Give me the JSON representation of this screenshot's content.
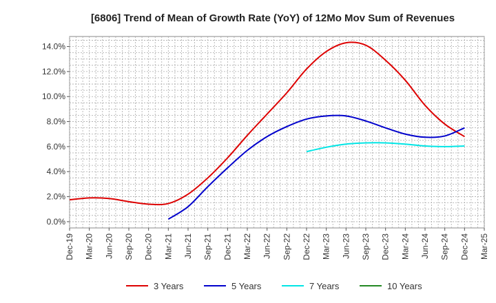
{
  "chart_data": {
    "type": "line",
    "title": "[6806]  Trend of Mean of Growth Rate (YoY) of 12Mo Mov Sum of Revenues",
    "xlabel": "",
    "ylabel": "",
    "ylim": [
      -0.5,
      14.8
    ],
    "yticks": [
      0,
      2,
      4,
      6,
      8,
      10,
      12,
      14
    ],
    "ytick_labels": [
      "0.0%",
      "2.0%",
      "4.0%",
      "6.0%",
      "8.0%",
      "10.0%",
      "12.0%",
      "14.0%"
    ],
    "x_categories": [
      "Dec-19",
      "Mar-20",
      "Jun-20",
      "Sep-20",
      "Dec-20",
      "Mar-21",
      "Jun-21",
      "Sep-21",
      "Dec-21",
      "Mar-22",
      "Jun-22",
      "Sep-22",
      "Dec-22",
      "Mar-23",
      "Jun-23",
      "Sep-23",
      "Dec-23",
      "Mar-24",
      "Jun-24",
      "Sep-24",
      "Dec-24",
      "Mar-25"
    ],
    "grid": true,
    "legend_position": "bottom",
    "series": [
      {
        "name": "3 Years",
        "color": "#dd0000",
        "x": [
          "Dec-19",
          "Mar-20",
          "Jun-20",
          "Sep-20",
          "Dec-20",
          "Mar-21",
          "Jun-21",
          "Sep-21",
          "Dec-21",
          "Mar-22",
          "Jun-22",
          "Sep-22",
          "Dec-22",
          "Mar-23",
          "Jun-23",
          "Sep-23",
          "Dec-23",
          "Mar-24",
          "Jun-24",
          "Sep-24",
          "Dec-24"
        ],
        "values": [
          1.75,
          1.9,
          1.85,
          1.6,
          1.4,
          1.45,
          2.2,
          3.5,
          5.1,
          6.9,
          8.6,
          10.3,
          12.2,
          13.6,
          14.3,
          14.1,
          12.9,
          11.3,
          9.3,
          7.8,
          6.8
        ]
      },
      {
        "name": "5 Years",
        "color": "#0000cc",
        "x": [
          "Mar-21",
          "Jun-21",
          "Sep-21",
          "Dec-21",
          "Mar-22",
          "Jun-22",
          "Sep-22",
          "Dec-22",
          "Mar-23",
          "Jun-23",
          "Sep-23",
          "Dec-23",
          "Mar-24",
          "Jun-24",
          "Sep-24",
          "Dec-24"
        ],
        "values": [
          0.2,
          1.2,
          2.8,
          4.3,
          5.7,
          6.8,
          7.6,
          8.2,
          8.45,
          8.45,
          8.05,
          7.5,
          7.0,
          6.75,
          6.85,
          7.5
        ]
      },
      {
        "name": "7 Years",
        "color": "#00e5e5",
        "x": [
          "Dec-22",
          "Mar-23",
          "Jun-23",
          "Sep-23",
          "Dec-23",
          "Mar-24",
          "Jun-24",
          "Sep-24",
          "Dec-24"
        ],
        "values": [
          5.6,
          5.95,
          6.2,
          6.3,
          6.3,
          6.2,
          6.05,
          6.0,
          6.05
        ]
      },
      {
        "name": "10 Years",
        "color": "#228822",
        "x": [],
        "values": []
      }
    ]
  }
}
